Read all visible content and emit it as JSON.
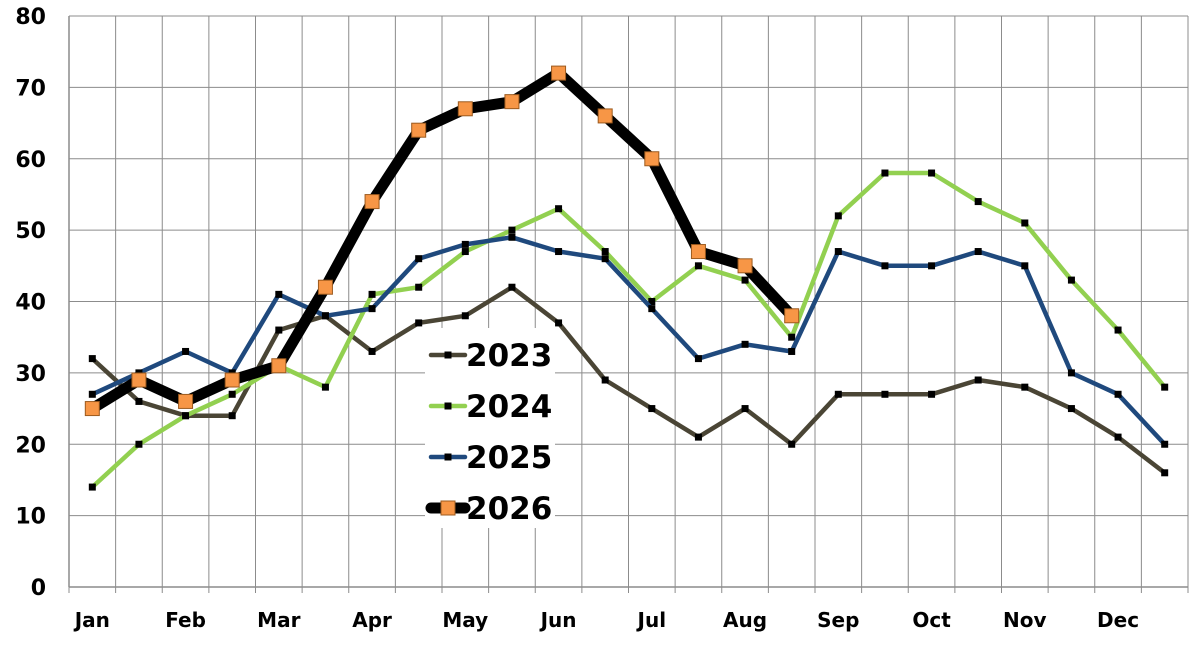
{
  "chart_data": {
    "type": "line",
    "title": "",
    "xlabel": "",
    "ylabel": "",
    "ylim": [
      0,
      80
    ],
    "yticks": [
      "0",
      "10",
      "20",
      "30",
      "40",
      "50",
      "60",
      "70",
      "80"
    ],
    "month_labels": [
      "Jan",
      "Feb",
      "Mar",
      "Apr",
      "May",
      "Jun",
      "Jul",
      "Aug",
      "Sep",
      "Oct",
      "Nov",
      "Dec"
    ],
    "grid": true,
    "legend_position": "center-left",
    "series": [
      {
        "name": "2023",
        "color": "#4a4535",
        "values": [
          32,
          26,
          24,
          24,
          36,
          38,
          33,
          37,
          38,
          42,
          37,
          29,
          25,
          21,
          25,
          20,
          27,
          27,
          27,
          29,
          28,
          25,
          21,
          16
        ]
      },
      {
        "name": "2024",
        "color": "#92d050",
        "values": [
          14,
          20,
          24,
          27,
          31,
          28,
          41,
          42,
          47,
          50,
          53,
          47,
          40,
          45,
          43,
          35,
          52,
          58,
          58,
          54,
          51,
          43,
          36,
          28
        ]
      },
      {
        "name": "2025",
        "color": "#1f497d",
        "values": [
          27,
          30,
          33,
          30,
          41,
          38,
          39,
          46,
          48,
          49,
          47,
          46,
          39,
          32,
          34,
          33,
          47,
          45,
          45,
          47,
          45,
          30,
          27,
          20
        ]
      },
      {
        "name": "2026",
        "color": "#000000",
        "marker_color": "#f79646",
        "values": [
          25,
          29,
          26,
          29,
          31,
          42,
          54,
          64,
          67,
          68,
          72,
          66,
          60,
          47,
          45,
          38
        ]
      }
    ]
  }
}
